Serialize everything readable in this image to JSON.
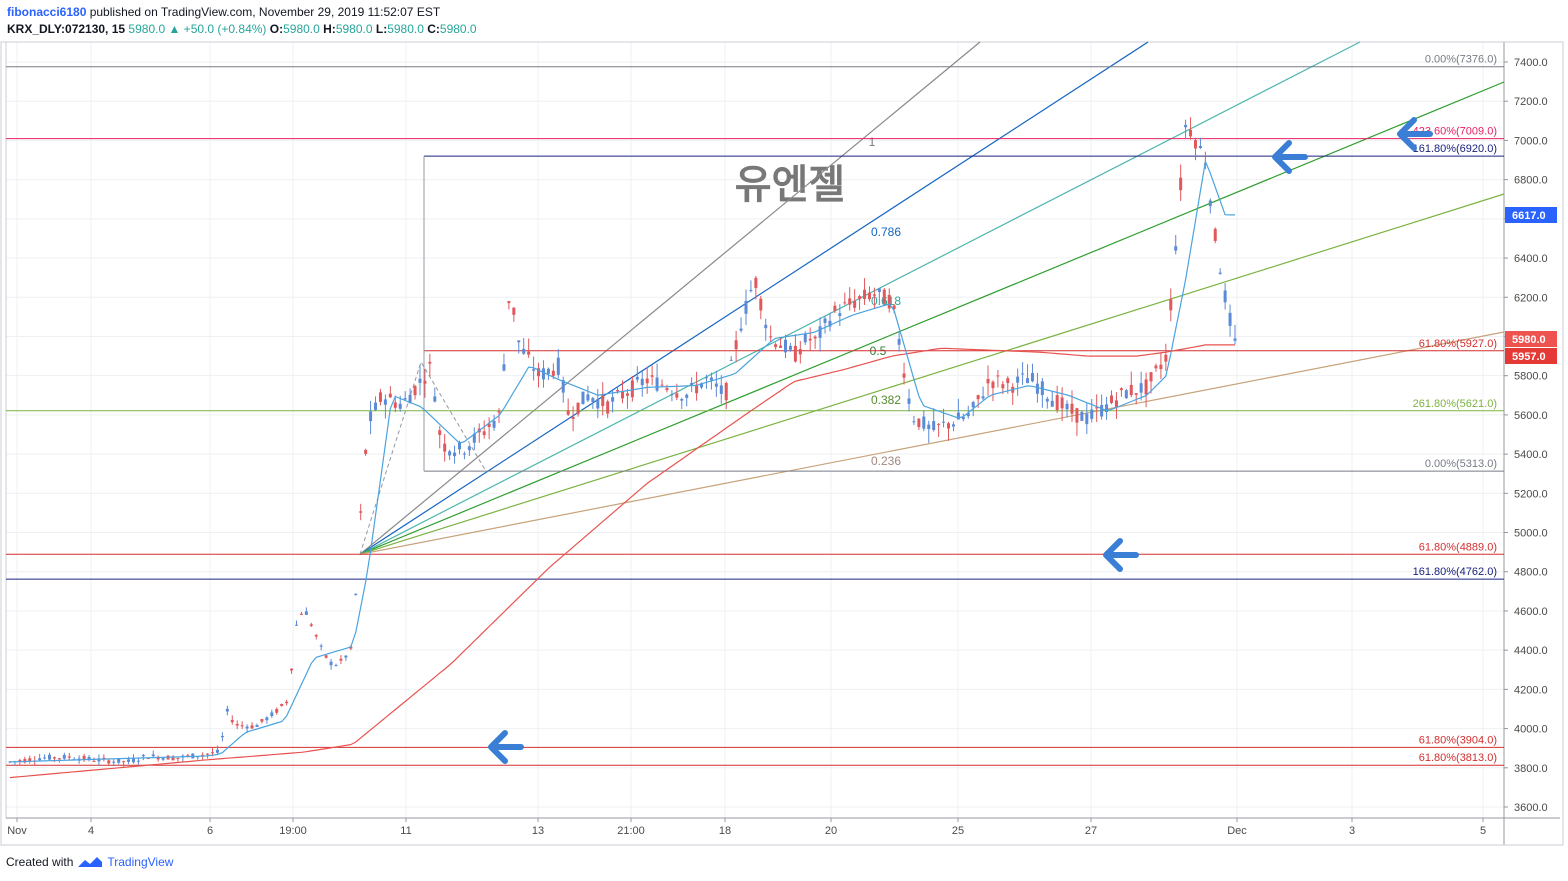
{
  "header": {
    "author": "fibonacci6180",
    "published": " published on TradingView.com, November 29, 2019 11:52:07 EST",
    "symbol": "KRX_DLY:072130, 15",
    "last": "5980.0",
    "change": "▲ +50.0 (+0.84%)",
    "o_label": "O:",
    "o": "5980.0",
    "h_label": "H:",
    "h": "5980.0",
    "l_label": "L:",
    "l": "5980.0",
    "c_label": "C:",
    "c": "5980.0"
  },
  "footer": {
    "created": "Created with",
    "brand": "TradingView"
  },
  "watermark": "유엔젤",
  "colors": {
    "up": "#5b8ad6",
    "down": "#e0585c",
    "ma_fast": "#4aa3df",
    "ma_slow": "#e8534f",
    "grid": "#eef0f3",
    "axis_text": "#4a4a4a",
    "arrow": "#3a7fd5"
  },
  "chart_data": {
    "type": "candlestick",
    "price_axis": {
      "min": 3600,
      "max": 7400,
      "ticks": [
        "3600.0",
        "3800.0",
        "4000.0",
        "4200.0",
        "4400.0",
        "4600.0",
        "4800.0",
        "5000.0",
        "5200.0",
        "5400.0",
        "5600.0",
        "5800.0",
        "6000.0",
        "6200.0",
        "6400.0",
        "6600.0",
        "6800.0",
        "7000.0",
        "7200.0",
        "7400.0"
      ]
    },
    "time_axis": [
      "Nov",
      "4",
      "6",
      "19:00",
      "11",
      "13",
      "21:00",
      "18",
      "20",
      "25",
      "27",
      "Dec",
      "3",
      "5"
    ],
    "price_badges": [
      {
        "text": "6617.0",
        "value": 6617,
        "color": "#2962ff"
      },
      {
        "text": "5980.0",
        "value": 5980,
        "color": "#ef5350"
      },
      {
        "text": "5957.0",
        "value": 5957,
        "color": "#e53935"
      }
    ],
    "hlines": [
      {
        "label": "0.00%(7376.0)",
        "value": 7376,
        "color": "#787b86",
        "extent": "full"
      },
      {
        "label": "423.60%(7009.0)",
        "value": 7009,
        "color": "#e91e63",
        "extent": "full"
      },
      {
        "label": "161.80%(6920.0)",
        "value": 6920,
        "color": "#1a237e",
        "extent": "partial"
      },
      {
        "label": "61.80%(5927.0)",
        "value": 5927,
        "color": "#d32f2f",
        "extent": "partial"
      },
      {
        "label": "261.80%(5621.0)",
        "value": 5621,
        "color": "#7cb342",
        "extent": "full"
      },
      {
        "label": "0.00%(5313.0)",
        "value": 5313,
        "color": "#787b86",
        "extent": "partial"
      },
      {
        "label": "61.80%(4889.0)",
        "value": 4889,
        "color": "#d32f2f",
        "extent": "full"
      },
      {
        "label": "161.80%(4762.0)",
        "value": 4762,
        "color": "#1a237e",
        "extent": "full"
      },
      {
        "label": "61.80%(3904.0)",
        "value": 3904,
        "color": "#d32f2f",
        "extent": "full"
      },
      {
        "label": "61.80%(3813.0)",
        "value": 3813,
        "color": "#d32f2f",
        "extent": "full"
      }
    ],
    "fan_labels": [
      {
        "text": "1",
        "color": "#787b86"
      },
      {
        "text": "0.786",
        "color": "#1565c0"
      },
      {
        "text": "0.618",
        "color": "#26a69a"
      },
      {
        "text": "0.5",
        "color": "#2e7d32"
      },
      {
        "text": "0.382",
        "color": "#558b2f"
      },
      {
        "text": "0.236",
        "color": "#a1887f"
      }
    ],
    "fan_colors": [
      "#8a8a8a",
      "#1565c0",
      "#4db6ac",
      "#2e9e2e",
      "#7cb342",
      "#c8a27a"
    ],
    "price_path": [
      [
        0,
        3830
      ],
      [
        6,
        3850
      ],
      [
        12,
        3855
      ],
      [
        18,
        3840
      ],
      [
        24,
        3830
      ],
      [
        28,
        3860
      ],
      [
        34,
        3850
      ],
      [
        40,
        3870
      ],
      [
        43,
        3880
      ],
      [
        44,
        4100
      ],
      [
        46,
        4020
      ],
      [
        50,
        4010
      ],
      [
        54,
        4080
      ],
      [
        57,
        4150
      ],
      [
        58,
        4500
      ],
      [
        60,
        4620
      ],
      [
        62,
        4500
      ],
      [
        64,
        4380
      ],
      [
        66,
        4320
      ],
      [
        68,
        4350
      ],
      [
        70,
        4420
      ],
      [
        71,
        4890
      ],
      [
        73,
        5550
      ],
      [
        76,
        5700
      ],
      [
        80,
        5650
      ],
      [
        84,
        5780
      ],
      [
        86,
        5850
      ],
      [
        88,
        5450
      ],
      [
        92,
        5420
      ],
      [
        96,
        5500
      ],
      [
        100,
        5600
      ],
      [
        102,
        6250
      ],
      [
        104,
        5950
      ],
      [
        108,
        5800
      ],
      [
        112,
        5850
      ],
      [
        114,
        5600
      ],
      [
        118,
        5700
      ],
      [
        122,
        5650
      ],
      [
        126,
        5720
      ],
      [
        130,
        5780
      ],
      [
        134,
        5750
      ],
      [
        138,
        5700
      ],
      [
        142,
        5780
      ],
      [
        146,
        5700
      ],
      [
        149,
        6050
      ],
      [
        152,
        6300
      ],
      [
        155,
        6000
      ],
      [
        158,
        5950
      ],
      [
        160,
        5900
      ],
      [
        163,
        6000
      ],
      [
        164,
        5960
      ],
      [
        168,
        6120
      ],
      [
        172,
        6170
      ],
      [
        176,
        6220
      ],
      [
        180,
        6180
      ],
      [
        182,
        5900
      ],
      [
        184,
        5600
      ],
      [
        188,
        5520
      ],
      [
        192,
        5560
      ],
      [
        196,
        5600
      ],
      [
        200,
        5780
      ],
      [
        204,
        5750
      ],
      [
        208,
        5790
      ],
      [
        212,
        5700
      ],
      [
        216,
        5620
      ],
      [
        220,
        5580
      ],
      [
        224,
        5650
      ],
      [
        228,
        5720
      ],
      [
        232,
        5740
      ],
      [
        236,
        5900
      ],
      [
        238,
        6500
      ],
      [
        240,
        7100
      ],
      [
        242,
        7000
      ],
      [
        244,
        6900
      ],
      [
        246,
        6500
      ],
      [
        248,
        6200
      ],
      [
        250,
        5960
      ]
    ],
    "ma_fast_path": [
      [
        0,
        3830
      ],
      [
        40,
        3860
      ],
      [
        43,
        3870
      ],
      [
        48,
        3980
      ],
      [
        56,
        4040
      ],
      [
        62,
        4360
      ],
      [
        70,
        4420
      ],
      [
        73,
        4800
      ],
      [
        78,
        5700
      ],
      [
        84,
        5640
      ],
      [
        92,
        5450
      ],
      [
        100,
        5600
      ],
      [
        106,
        5850
      ],
      [
        112,
        5780
      ],
      [
        120,
        5700
      ],
      [
        130,
        5740
      ],
      [
        140,
        5750
      ],
      [
        148,
        5810
      ],
      [
        156,
        5990
      ],
      [
        164,
        6020
      ],
      [
        172,
        6110
      ],
      [
        180,
        6170
      ],
      [
        186,
        5650
      ],
      [
        194,
        5580
      ],
      [
        200,
        5700
      ],
      [
        208,
        5750
      ],
      [
        216,
        5700
      ],
      [
        224,
        5620
      ],
      [
        232,
        5700
      ],
      [
        236,
        5800
      ],
      [
        240,
        6300
      ],
      [
        244,
        6900
      ],
      [
        248,
        6620
      ]
    ],
    "ma_slow_path": [
      [
        0,
        3750
      ],
      [
        40,
        3840
      ],
      [
        60,
        3880
      ],
      [
        70,
        3920
      ],
      [
        90,
        4330
      ],
      [
        110,
        4820
      ],
      [
        130,
        5250
      ],
      [
        150,
        5600
      ],
      [
        160,
        5770
      ],
      [
        170,
        5830
      ],
      [
        180,
        5900
      ],
      [
        190,
        5940
      ],
      [
        200,
        5930
      ],
      [
        210,
        5920
      ],
      [
        220,
        5900
      ],
      [
        230,
        5900
      ],
      [
        236,
        5920
      ],
      [
        244,
        5957
      ],
      [
        248,
        5957
      ]
    ]
  }
}
